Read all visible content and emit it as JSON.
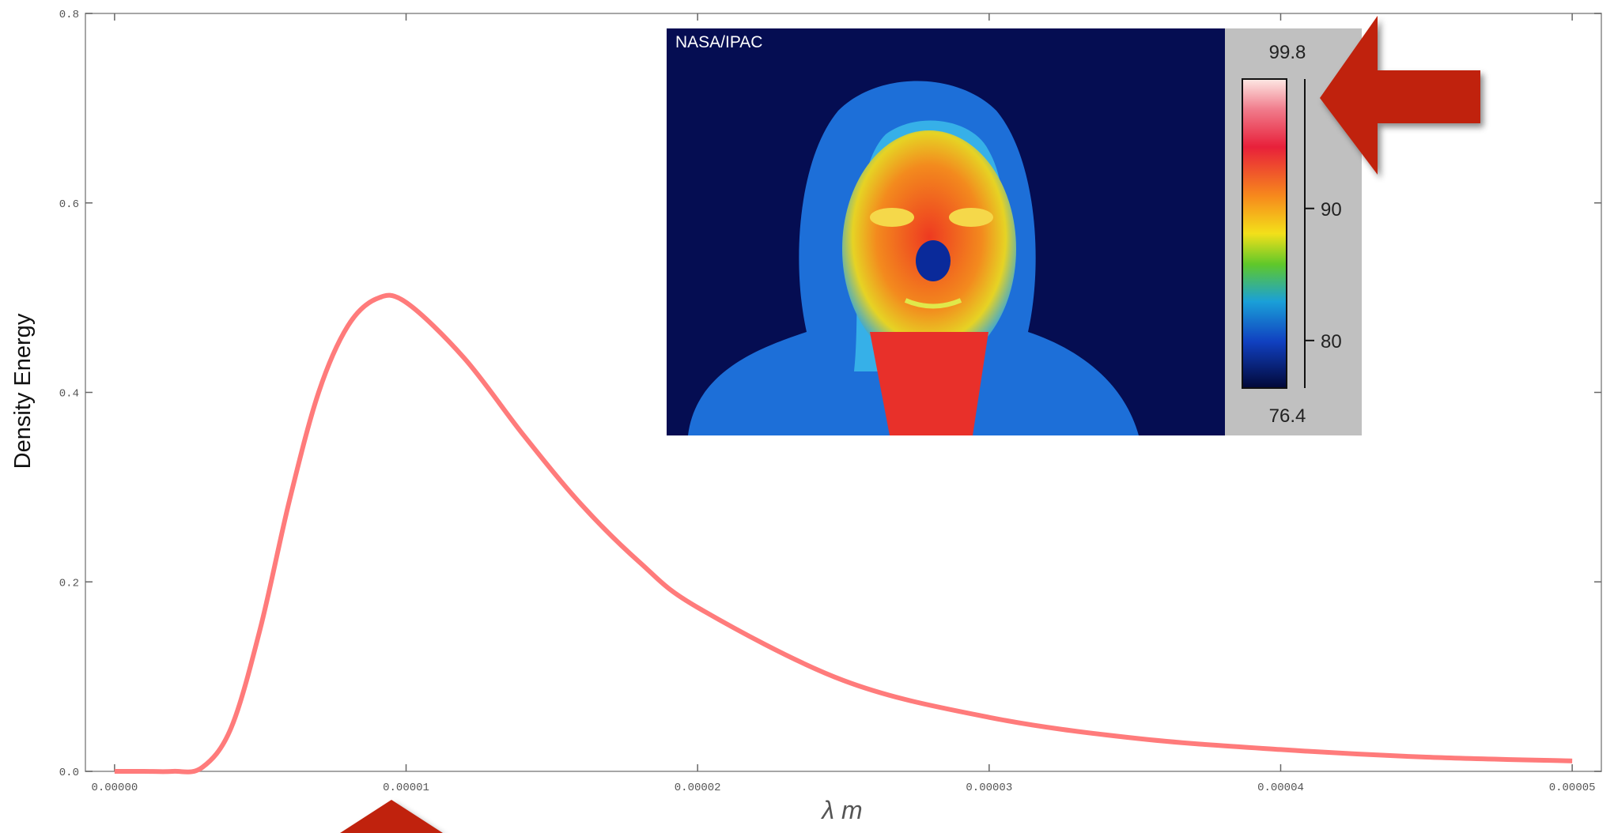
{
  "chart_data": {
    "type": "line",
    "x_label": "λ m",
    "y_label": "Density Energy",
    "x": [
      0,
      1e-06,
      2e-06,
      3e-06,
      4e-06,
      5e-06,
      6e-06,
      7e-06,
      8e-06,
      9e-06,
      1e-05,
      1.2e-05,
      1.4e-05,
      1.6e-05,
      1.8e-05,
      2e-05,
      2.5e-05,
      3e-05,
      3.5e-05,
      4e-05,
      4.5e-05,
      5e-05
    ],
    "series": [
      {
        "color": "#ff7b7b",
        "values": [
          0,
          0,
          0,
          0.004,
          0.046,
          0.151,
          0.286,
          0.4,
          0.47,
          0.499,
          0.495,
          0.436,
          0.356,
          0.282,
          0.221,
          0.173,
          0.096,
          0.057,
          0.035,
          0.023,
          0.015,
          0.011
        ]
      }
    ],
    "xlim": [
      -1e-06,
      5.1e-05
    ],
    "ylim": [
      0,
      0.8
    ],
    "xticks": [
      {
        "value": 0,
        "label": "0.00000"
      },
      {
        "value": 1e-05,
        "label": "0.00001"
      },
      {
        "value": 2e-05,
        "label": "0.00002"
      },
      {
        "value": 3e-05,
        "label": "0.00003"
      },
      {
        "value": 4e-05,
        "label": "0.00004"
      },
      {
        "value": 5e-05,
        "label": "0.00005"
      }
    ],
    "yticks": [
      {
        "value": 0,
        "label": "0.0"
      },
      {
        "value": 0.2,
        "label": "0.2"
      },
      {
        "value": 0.4,
        "label": "0.4"
      },
      {
        "value": 0.6,
        "label": "0.6"
      },
      {
        "value": 0.8,
        "label": "0.8"
      }
    ],
    "inset": {
      "credit": "NASA/IPAC",
      "colorbar": {
        "max": 99.8,
        "min": 76.4,
        "ticks": [
          90,
          80
        ]
      }
    }
  }
}
